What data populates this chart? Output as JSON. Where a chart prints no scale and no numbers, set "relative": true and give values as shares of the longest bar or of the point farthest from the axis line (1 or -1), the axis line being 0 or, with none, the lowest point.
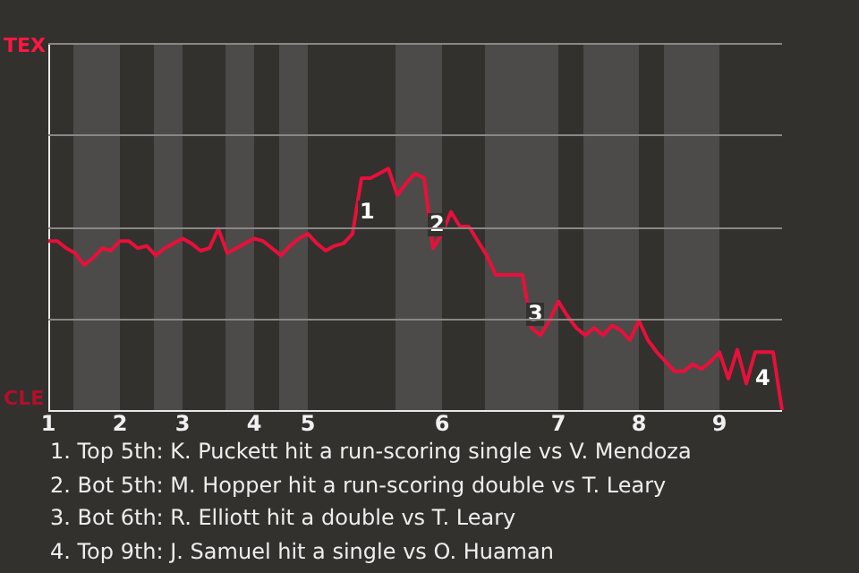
{
  "chart_data": {
    "type": "line",
    "relative": true,
    "categories": [
      "1",
      null,
      null,
      null,
      null,
      null,
      null,
      null,
      "2",
      null,
      null,
      null,
      null,
      null,
      null,
      "3",
      null,
      null,
      null,
      null,
      null,
      null,
      null,
      "4",
      null,
      null,
      null,
      null,
      null,
      "5",
      null,
      null,
      null,
      null,
      null,
      null,
      null,
      null,
      null,
      null,
      null,
      null,
      null,
      null,
      "6",
      null,
      null,
      null,
      null,
      null,
      null,
      null,
      null,
      null,
      null,
      null,
      null,
      "7",
      null,
      null,
      null,
      null,
      null,
      null,
      null,
      null,
      "8",
      null,
      null,
      null,
      null,
      null,
      null,
      null,
      null,
      "9",
      null,
      null,
      null,
      null,
      null,
      null,
      null
    ],
    "series": [
      {
        "color": "#e8103a",
        "values": [
          0.7,
          0.7,
          0.67,
          0.65,
          0.6,
          0.63,
          0.67,
          0.66,
          0.7,
          0.7,
          0.67,
          0.68,
          0.64,
          0.67,
          0.69,
          0.71,
          0.69,
          0.66,
          0.67,
          0.75,
          0.65,
          0.67,
          0.69,
          0.71,
          0.7,
          0.67,
          0.64,
          0.68,
          0.71,
          0.73,
          0.69,
          0.66,
          0.68,
          0.69,
          0.73,
          0.96,
          0.96,
          0.98,
          1,
          0.89,
          0.94,
          0.98,
          0.96,
          0.67,
          0.73,
          0.82,
          0.76,
          0.76,
          0.7,
          0.64,
          0.56,
          0.56,
          0.56,
          0.56,
          0.34,
          0.31,
          0.37,
          0.45,
          0.39,
          0.34,
          0.31,
          0.34,
          0.31,
          0.35,
          0.33,
          0.29,
          0.37,
          0.29,
          0.24,
          0.2,
          0.16,
          0.16,
          0.19,
          0.17,
          0.2,
          0.24,
          0.13,
          0.25,
          0.11,
          0.24,
          0.24,
          0.24,
          0
        ]
      }
    ],
    "legend": false,
    "marker": "none",
    "line_style": "solid",
    "annotations": [
      "TEX",
      "CLE",
      "1",
      "2",
      "3",
      "4",
      "1. Top 5th: K. Puckett hit a run-scoring single vs V. Mendoza",
      "2. Bot 5th: M. Hopper hit a run-scoring double vs T. Leary",
      "3. Bot 6th: R. Elliott hit a double vs T. Leary",
      "4. Top 9th: J. Samuel hit a single vs O. Huaman"
    ]
  }
}
